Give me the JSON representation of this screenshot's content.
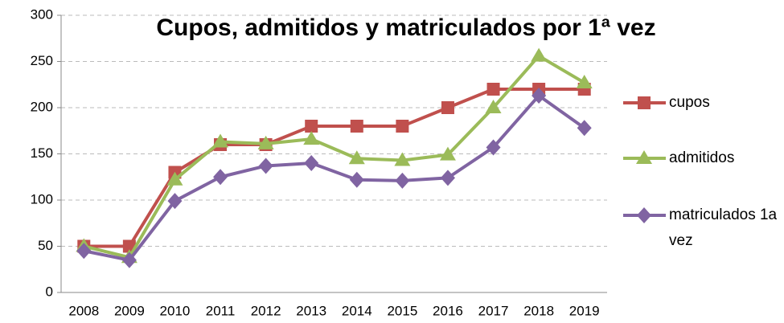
{
  "chart_data": {
    "type": "line",
    "title": "Cupos, admitidos y matriculados por 1ª vez",
    "categories": [
      "2008",
      "2009",
      "2010",
      "2011",
      "2012",
      "2013",
      "2014",
      "2015",
      "2016",
      "2017",
      "2018",
      "2019"
    ],
    "series": [
      {
        "name": "cupos",
        "color": "#c0504d",
        "marker": "square",
        "values": [
          50,
          50,
          130,
          160,
          160,
          180,
          180,
          180,
          200,
          220,
          220,
          220
        ]
      },
      {
        "name": "admitidos",
        "color": "#9bbb59",
        "marker": "triangle",
        "values": [
          50,
          38,
          122,
          163,
          161,
          166,
          145,
          143,
          149,
          200,
          256,
          227
        ]
      },
      {
        "name": "matriculados 1a vez",
        "color": "#8064a2",
        "marker": "diamond",
        "values": [
          45,
          35,
          99,
          125,
          137,
          140,
          122,
          121,
          124,
          157,
          213,
          178
        ]
      }
    ],
    "ylim": [
      0,
      300
    ],
    "yticks": [
      0,
      50,
      100,
      150,
      200,
      250,
      300
    ],
    "grid": true,
    "legend": "right"
  }
}
